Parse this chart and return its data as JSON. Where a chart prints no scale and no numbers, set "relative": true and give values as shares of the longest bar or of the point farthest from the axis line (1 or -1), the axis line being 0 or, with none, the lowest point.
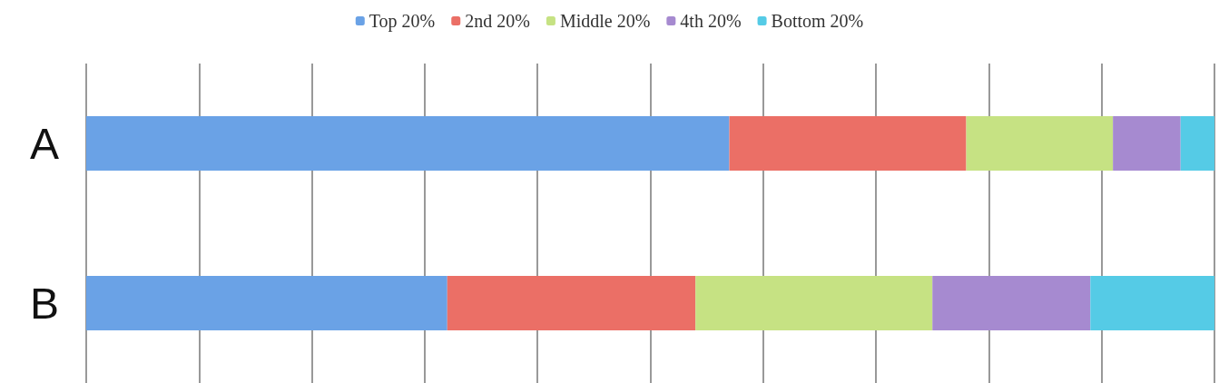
{
  "chart_data": {
    "type": "bar",
    "orientation": "horizontal",
    "stacked": true,
    "relative": true,
    "categories": [
      "A",
      "B"
    ],
    "series": [
      {
        "name": "Top 20%",
        "color": "#6aa2e6",
        "values": [
          0.57,
          0.32
        ]
      },
      {
        "name": "2nd 20%",
        "color": "#eb6f66",
        "values": [
          0.21,
          0.22
        ]
      },
      {
        "name": "Middle 20%",
        "color": "#c6e283",
        "values": [
          0.13,
          0.21
        ]
      },
      {
        "name": "4th 20%",
        "color": "#a68ad0",
        "values": [
          0.06,
          0.14
        ]
      },
      {
        "name": "Bottom 20%",
        "color": "#55cbe6",
        "values": [
          0.03,
          0.11
        ]
      }
    ],
    "grid": "x",
    "legend": "top"
  }
}
